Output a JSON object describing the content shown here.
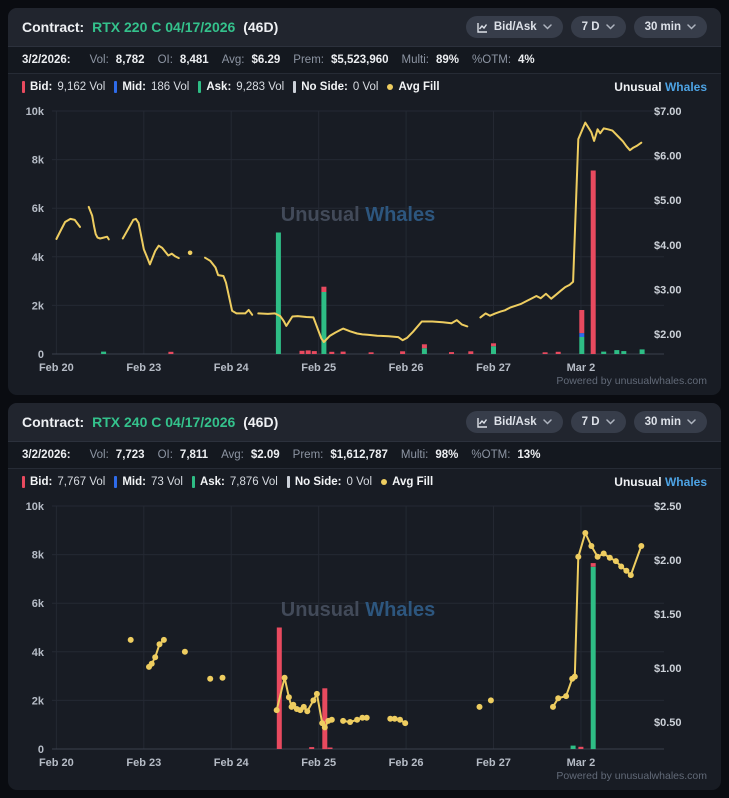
{
  "brand": {
    "watermark_first": "Unusual",
    "watermark_second": "Whales",
    "legend_brand_first": "Unusual",
    "legend_brand_second": "Whales",
    "powered_by": "Powered by unusualwhales.com"
  },
  "controls": {
    "chart_type_label": "Bid/Ask",
    "period_label": "7 D",
    "interval_label": "30 min"
  },
  "icons": {
    "chart_type": "mini-line-chart",
    "chevron": "chevron-down"
  },
  "colors": {
    "bid": "#e84a5f",
    "mid": "#2e6bea",
    "ask": "#2ebd85",
    "no_side": "#ccd1d9",
    "avg_fill": "#eecd60",
    "contract_green": "#34c28c",
    "brand_blue": "#4da3e4",
    "watermark_gray": "#424a59",
    "watermark_blue": "#2d567e",
    "grid": "#242933",
    "axis_zero": "#3a404d"
  },
  "panels": [
    {
      "contract_label": "Contract:",
      "contract_name": "RTX 220 C 04/17/2026",
      "dte": "(46D)",
      "stats": {
        "date": "3/2/2026:",
        "vol_label": "Vol:",
        "vol": "8,782",
        "oi_label": "OI:",
        "oi": "8,481",
        "avg_label": "Avg:",
        "avg": "$6.29",
        "prem_label": "Prem:",
        "prem": "$5,523,960",
        "multi_label": "Multi:",
        "multi": "89%",
        "otm_label": "%OTM:",
        "otm": "4%"
      },
      "legend": {
        "bid_label": "Bid:",
        "bid": "9,162 Vol",
        "mid_label": "Mid:",
        "mid": "186 Vol",
        "ask_label": "Ask:",
        "ask": "9,283 Vol",
        "noside_label": "No Side:",
        "noside": "0 Vol",
        "avgfill_label": "Avg Fill"
      }
    },
    {
      "contract_label": "Contract:",
      "contract_name": "RTX 240 C 04/17/2026",
      "dte": "(46D)",
      "stats": {
        "date": "3/2/2026:",
        "vol_label": "Vol:",
        "vol": "7,723",
        "oi_label": "OI:",
        "oi": "7,811",
        "avg_label": "Avg:",
        "avg": "$2.09",
        "prem_label": "Prem:",
        "prem": "$1,612,787",
        "multi_label": "Multi:",
        "multi": "98%",
        "otm_label": "%OTM:",
        "otm": "13%"
      },
      "legend": {
        "bid_label": "Bid:",
        "bid": "7,767 Vol",
        "mid_label": "Mid:",
        "mid": "73 Vol",
        "ask_label": "Ask:",
        "ask": "7,876 Vol",
        "noside_label": "No Side:",
        "noside": "0 Vol",
        "avgfill_label": "Avg Fill"
      }
    }
  ],
  "chart_data": [
    {
      "type": "line+bar",
      "title": "RTX 220 C 04/17/2026 bid/ask volume and avg fill price, 7 days, 30 min",
      "x_tick_labels": [
        "Feb 20",
        "Feb 23",
        "Feb 24",
        "Feb 25",
        "Feb 26",
        "Feb 27",
        "Mar 2"
      ],
      "x_tick_positions": [
        0,
        1,
        2,
        3,
        4,
        5,
        6
      ],
      "x_range": [
        -0.05,
        6.95
      ],
      "left_axis": {
        "label": "volume",
        "range": [
          0,
          10000
        ],
        "ticks": [
          0,
          2000,
          4000,
          6000,
          8000,
          10000
        ],
        "tick_labels": [
          "0",
          "2k",
          "4k",
          "6k",
          "8k",
          "10k"
        ]
      },
      "right_axis": {
        "label": "avg fill price",
        "range": [
          1.55,
          7.0
        ],
        "ticks": [
          2,
          3,
          4,
          5,
          6,
          7
        ],
        "tick_labels": [
          "$2.00",
          "$3.00",
          "$4.00",
          "$5.00",
          "$6.00",
          "$7.00"
        ]
      },
      "show_markers": false,
      "avg_fill_segments": [
        [
          [
            0.0,
            4.13
          ],
          [
            0.05,
            4.32
          ],
          [
            0.1,
            4.51
          ],
          [
            0.16,
            4.58
          ],
          [
            0.21,
            4.56
          ],
          [
            0.27,
            4.4
          ]
        ],
        [
          [
            0.37,
            4.85
          ],
          [
            0.41,
            4.65
          ],
          [
            0.43,
            4.42
          ],
          [
            0.45,
            4.24
          ],
          [
            0.47,
            4.16
          ],
          [
            0.5,
            4.14
          ],
          [
            0.54,
            4.16
          ],
          [
            0.58,
            4.18
          ],
          [
            0.6,
            4.12
          ]
        ],
        [
          [
            0.76,
            4.14
          ],
          [
            0.83,
            4.38
          ],
          [
            0.88,
            4.56
          ],
          [
            0.91,
            4.58
          ],
          [
            0.94,
            4.49
          ],
          [
            1.0,
            3.9
          ],
          [
            1.04,
            3.71
          ],
          [
            1.07,
            3.56
          ],
          [
            1.13,
            3.86
          ],
          [
            1.17,
            3.98
          ],
          [
            1.21,
            3.93
          ],
          [
            1.25,
            3.83
          ],
          [
            1.28,
            3.76
          ],
          [
            1.32,
            3.8
          ],
          [
            1.36,
            3.74
          ],
          [
            1.4,
            3.7
          ]
        ],
        [
          [
            1.53,
            3.82
          ]
        ],
        [
          [
            1.7,
            3.71
          ],
          [
            1.76,
            3.64
          ],
          [
            1.82,
            3.49
          ],
          [
            1.85,
            3.32
          ],
          [
            1.91,
            3.3
          ],
          [
            1.94,
            3.15
          ],
          [
            2.01,
            2.52
          ],
          [
            2.06,
            2.46
          ],
          [
            2.16,
            2.46
          ],
          [
            2.2,
            2.54
          ],
          [
            2.24,
            2.43
          ]
        ],
        [
          [
            2.31,
            2.46
          ],
          [
            2.42,
            2.45
          ],
          [
            2.5,
            2.46
          ],
          [
            2.56,
            2.4
          ],
          [
            2.6,
            2.29
          ],
          [
            2.63,
            2.18
          ],
          [
            2.7,
            2.39
          ],
          [
            2.76,
            2.4
          ],
          [
            2.86,
            2.38
          ],
          [
            2.94,
            2.37
          ],
          [
            3.03,
            1.9
          ],
          [
            3.06,
            1.82
          ],
          [
            3.13,
            1.96
          ],
          [
            3.19,
            2.03
          ],
          [
            3.25,
            2.09
          ],
          [
            3.28,
            2.12
          ],
          [
            3.36,
            2.06
          ],
          [
            3.44,
            2.01
          ],
          [
            3.5,
            1.99
          ],
          [
            3.56,
            1.98
          ],
          [
            3.67,
            1.96
          ],
          [
            3.8,
            1.95
          ],
          [
            3.91,
            1.93
          ],
          [
            3.96,
            1.86
          ],
          [
            4.01,
            1.91
          ],
          [
            4.08,
            2.05
          ],
          [
            4.18,
            2.28
          ],
          [
            4.3,
            2.28
          ],
          [
            4.42,
            2.26
          ],
          [
            4.52,
            2.24
          ],
          [
            4.58,
            2.31
          ],
          [
            4.64,
            2.21
          ],
          [
            4.7,
            2.17
          ]
        ],
        [
          [
            4.85,
            2.37
          ],
          [
            4.91,
            2.46
          ],
          [
            4.96,
            2.41
          ],
          [
            5.02,
            2.46
          ],
          [
            5.08,
            2.5
          ],
          [
            5.13,
            2.53
          ],
          [
            5.19,
            2.59
          ],
          [
            5.25,
            2.63
          ],
          [
            5.31,
            2.67
          ],
          [
            5.37,
            2.73
          ],
          [
            5.43,
            2.79
          ],
          [
            5.49,
            2.85
          ],
          [
            5.54,
            2.8
          ],
          [
            5.6,
            2.9
          ],
          [
            5.66,
            2.79
          ],
          [
            5.72,
            2.89
          ],
          [
            5.77,
            2.97
          ],
          [
            5.82,
            3.05
          ],
          [
            5.87,
            3.1
          ],
          [
            5.91,
            3.17
          ],
          [
            5.97,
            6.37
          ],
          [
            6.05,
            6.74
          ],
          [
            6.12,
            6.52
          ],
          [
            6.15,
            6.33
          ],
          [
            6.19,
            6.59
          ],
          [
            6.22,
            6.5
          ],
          [
            6.26,
            6.61
          ],
          [
            6.31,
            6.59
          ],
          [
            6.36,
            6.56
          ],
          [
            6.42,
            6.44
          ],
          [
            6.48,
            6.32
          ],
          [
            6.52,
            6.21
          ],
          [
            6.56,
            6.12
          ],
          [
            6.6,
            6.18
          ],
          [
            6.64,
            6.22
          ],
          [
            6.69,
            6.29
          ]
        ]
      ],
      "bars": [
        {
          "x": 0.54,
          "ask": 100,
          "mid": 0,
          "bid": 0
        },
        {
          "x": 1.31,
          "ask": 0,
          "mid": 0,
          "bid": 90
        },
        {
          "x": 2.54,
          "ask": 5000,
          "mid": 0,
          "bid": 0
        },
        {
          "x": 2.81,
          "ask": 0,
          "mid": 0,
          "bid": 130
        },
        {
          "x": 2.88,
          "ask": 0,
          "mid": 0,
          "bid": 150
        },
        {
          "x": 2.95,
          "ask": 0,
          "mid": 0,
          "bid": 120
        },
        {
          "x": 3.06,
          "ask": 2550,
          "mid": 0,
          "bid": 220
        },
        {
          "x": 3.15,
          "ask": 0,
          "mid": 0,
          "bid": 90
        },
        {
          "x": 3.28,
          "ask": 0,
          "mid": 0,
          "bid": 100
        },
        {
          "x": 3.6,
          "ask": 0,
          "mid": 0,
          "bid": 70
        },
        {
          "x": 3.96,
          "ask": 0,
          "mid": 0,
          "bid": 110
        },
        {
          "x": 4.21,
          "ask": 240,
          "mid": 0,
          "bid": 160
        },
        {
          "x": 4.52,
          "ask": 0,
          "mid": 0,
          "bid": 80
        },
        {
          "x": 4.74,
          "ask": 0,
          "mid": 0,
          "bid": 110
        },
        {
          "x": 5.0,
          "ask": 320,
          "mid": 0,
          "bid": 120
        },
        {
          "x": 5.59,
          "ask": 0,
          "mid": 0,
          "bid": 70
        },
        {
          "x": 5.74,
          "ask": 0,
          "mid": 0,
          "bid": 90
        },
        {
          "x": 6.01,
          "ask": 700,
          "mid": 160,
          "bid": 950
        },
        {
          "x": 6.14,
          "ask": 0,
          "mid": 0,
          "bid": 7550
        },
        {
          "x": 6.26,
          "ask": 100,
          "mid": 0,
          "bid": 0
        },
        {
          "x": 6.41,
          "ask": 160,
          "mid": 0,
          "bid": 0
        },
        {
          "x": 6.49,
          "ask": 120,
          "mid": 0,
          "bid": 0
        },
        {
          "x": 6.7,
          "ask": 190,
          "mid": 0,
          "bid": 0
        }
      ]
    },
    {
      "type": "line+bar",
      "title": "RTX 240 C 04/17/2026 bid/ask volume and avg fill price, 7 days, 30 min",
      "x_tick_labels": [
        "Feb 20",
        "Feb 23",
        "Feb 24",
        "Feb 25",
        "Feb 26",
        "Feb 27",
        "Mar 2"
      ],
      "x_tick_positions": [
        0,
        1,
        2,
        3,
        4,
        5,
        6
      ],
      "x_range": [
        -0.05,
        6.95
      ],
      "left_axis": {
        "label": "volume",
        "range": [
          0,
          10000
        ],
        "ticks": [
          0,
          2000,
          4000,
          6000,
          8000,
          10000
        ],
        "tick_labels": [
          "0",
          "2k",
          "4k",
          "6k",
          "8k",
          "10k"
        ]
      },
      "right_axis": {
        "label": "avg fill price",
        "range": [
          0.25,
          2.5
        ],
        "ticks": [
          0.5,
          1.0,
          1.5,
          2.0,
          2.5
        ],
        "tick_labels": [
          "$0.50",
          "$1.00",
          "$1.50",
          "$2.00",
          "$2.50"
        ]
      },
      "show_markers": true,
      "avg_fill_segments": [
        [
          [
            0.85,
            1.26
          ]
        ],
        [
          [
            1.06,
            1.01
          ],
          [
            1.09,
            1.04
          ],
          [
            1.13,
            1.1
          ],
          [
            1.18,
            1.22
          ],
          [
            1.23,
            1.26
          ]
        ],
        [
          [
            1.47,
            1.15
          ]
        ],
        [
          [
            1.76,
            0.9
          ]
        ],
        [
          [
            1.9,
            0.91
          ]
        ],
        [
          [
            2.52,
            0.61
          ],
          [
            2.61,
            0.91
          ],
          [
            2.66,
            0.73
          ],
          [
            2.69,
            0.64
          ],
          [
            2.71,
            0.66
          ],
          [
            2.75,
            0.62
          ],
          [
            2.79,
            0.61
          ],
          [
            2.83,
            0.64
          ],
          [
            2.87,
            0.6
          ],
          [
            2.94,
            0.7
          ],
          [
            2.98,
            0.76
          ],
          [
            3.04,
            0.49
          ],
          [
            3.07,
            0.45
          ],
          [
            3.11,
            0.51
          ],
          [
            3.15,
            0.52
          ]
        ],
        [
          [
            3.28,
            0.51
          ],
          [
            3.36,
            0.5
          ],
          [
            3.44,
            0.52
          ],
          [
            3.5,
            0.54
          ],
          [
            3.55,
            0.54
          ]
        ],
        [
          [
            3.82,
            0.53
          ],
          [
            3.87,
            0.53
          ],
          [
            3.93,
            0.52
          ],
          [
            3.99,
            0.49
          ]
        ],
        [
          [
            4.84,
            0.64
          ]
        ],
        [
          [
            4.97,
            0.7
          ]
        ],
        [
          [
            5.68,
            0.64
          ],
          [
            5.74,
            0.72
          ],
          [
            5.83,
            0.74
          ],
          [
            5.9,
            0.9
          ],
          [
            5.93,
            0.92
          ],
          [
            5.97,
            2.03
          ],
          [
            6.05,
            2.25
          ],
          [
            6.12,
            2.13
          ],
          [
            6.19,
            2.03
          ],
          [
            6.26,
            2.06
          ],
          [
            6.33,
            2.02
          ],
          [
            6.4,
            1.99
          ],
          [
            6.46,
            1.94
          ],
          [
            6.52,
            1.9
          ],
          [
            6.57,
            1.86
          ],
          [
            6.69,
            2.13
          ]
        ]
      ],
      "bars": [
        {
          "x": 2.55,
          "ask": 0,
          "mid": 0,
          "bid": 5000
        },
        {
          "x": 2.92,
          "ask": 0,
          "mid": 0,
          "bid": 80
        },
        {
          "x": 3.07,
          "ask": 0,
          "mid": 0,
          "bid": 2500
        },
        {
          "x": 3.13,
          "ask": 0,
          "mid": 0,
          "bid": 60
        },
        {
          "x": 5.91,
          "ask": 140,
          "mid": 0,
          "bid": 0
        },
        {
          "x": 6.0,
          "ask": 0,
          "mid": 0,
          "bid": 90
        },
        {
          "x": 6.14,
          "ask": 7500,
          "mid": 0,
          "bid": 150
        }
      ]
    }
  ]
}
